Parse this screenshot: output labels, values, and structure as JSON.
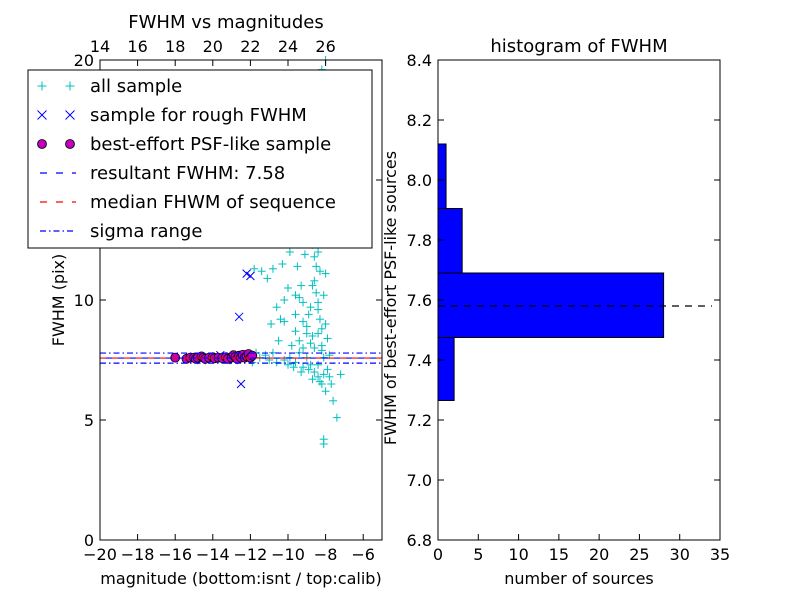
{
  "chart_data": [
    {
      "type": "scatter",
      "title": "FWHM vs magnitudes",
      "xlabel": "magnitude (bottom:isnt / top:calib)",
      "ylabel": "FWHM (pix)",
      "xlim": [
        -20,
        -5
      ],
      "ylim": [
        0,
        20
      ],
      "x_ticks": [
        -20,
        -18,
        -16,
        -14,
        -12,
        -10,
        -8,
        -6
      ],
      "x_tick_labels": [
        "−20",
        "−18",
        "−16",
        "−14",
        "−12",
        "−10",
        "−8",
        "−6"
      ],
      "y_ticks": [
        0,
        5,
        10,
        15,
        20
      ],
      "y_tick_labels": [
        "0",
        "5",
        "10",
        "15",
        "20"
      ],
      "top_axis_ticks": [
        14,
        16,
        18,
        20,
        22,
        24,
        26
      ],
      "top_axis_offset": 34.0,
      "grid": false,
      "legend": {
        "placement": "top-left",
        "entries": [
          {
            "label": "all sample",
            "marker": "+",
            "color": "#00bfbf"
          },
          {
            "label": "sample for rough FWHM",
            "marker": "x",
            "color": "#0000ff"
          },
          {
            "label": "best-effort PSF-like sample",
            "marker": "o",
            "color": "#bf00bf"
          },
          {
            "label": "resultant FWHM: 7.58",
            "marker": "dashed",
            "color": "#0000ff"
          },
          {
            "label": "median FHWM of sequence",
            "marker": "dashed",
            "color": "#ff0000"
          },
          {
            "label": "sigma range",
            "marker": "dashdot",
            "color": "#0000ff"
          }
        ]
      },
      "lines": {
        "resultant_fwhm": 7.58,
        "median_fwhm": 7.58,
        "sigma_range": [
          7.37,
          7.79
        ]
      },
      "series": [
        {
          "name": "all sample",
          "color": "#00bfbf",
          "marker": "+",
          "points": [
            [
              -10.2,
              7.5
            ],
            [
              -9.9,
              7.6
            ],
            [
              -9.6,
              7.4
            ],
            [
              -9.4,
              7.8
            ],
            [
              -9.2,
              7.2
            ],
            [
              -9.0,
              7.6
            ],
            [
              -8.8,
              7.3
            ],
            [
              -8.6,
              7.0
            ],
            [
              -8.4,
              6.8
            ],
            [
              -8.2,
              6.5
            ],
            [
              -8.0,
              6.2
            ],
            [
              -7.8,
              6.8
            ],
            [
              -7.6,
              5.8
            ],
            [
              -7.4,
              5.1
            ],
            [
              -7.2,
              6.9
            ],
            [
              -8.1,
              4.2
            ],
            [
              -8.1,
              4.0
            ],
            [
              -11.5,
              7.6
            ],
            [
              -11.2,
              7.7
            ],
            [
              -11.0,
              7.5
            ],
            [
              -10.8,
              7.8
            ],
            [
              -10.6,
              7.4
            ],
            [
              -10.5,
              8.3
            ],
            [
              -10.4,
              9.2
            ],
            [
              -10.2,
              10.0
            ],
            [
              -10.0,
              10.5
            ],
            [
              -10.6,
              9.7
            ],
            [
              -10.9,
              9.0
            ],
            [
              -11.1,
              10.9
            ],
            [
              -10.8,
              11.3
            ],
            [
              -10.5,
              12.5
            ],
            [
              -10.3,
              11.5
            ],
            [
              -10.1,
              12.9
            ],
            [
              -9.9,
              12.0
            ],
            [
              -9.7,
              13.4
            ],
            [
              -9.5,
              11.4
            ],
            [
              -9.3,
              10.6
            ],
            [
              -9.1,
              11.9
            ],
            [
              -8.9,
              13.5
            ],
            [
              -8.7,
              12.3
            ],
            [
              -8.5,
              14.6
            ],
            [
              -8.3,
              11.2
            ],
            [
              -8.1,
              10.2
            ],
            [
              -8.0,
              9.0
            ],
            [
              -7.9,
              8.4
            ],
            [
              -7.8,
              7.7
            ],
            [
              -9.6,
              9.4
            ],
            [
              -9.4,
              10.1
            ],
            [
              -9.2,
              9.1
            ],
            [
              -9.0,
              8.6
            ],
            [
              -8.8,
              9.7
            ],
            [
              -8.6,
              10.8
            ],
            [
              -8.4,
              9.9
            ],
            [
              -8.2,
              8.8
            ],
            [
              -8.0,
              11.1
            ],
            [
              -9.8,
              8.1
            ],
            [
              -9.6,
              8.7
            ],
            [
              -9.4,
              8.3
            ],
            [
              -9.2,
              8.0
            ],
            [
              -9.0,
              8.9
            ],
            [
              -8.8,
              8.2
            ],
            [
              -8.6,
              8.0
            ],
            [
              -8.4,
              8.6
            ],
            [
              -8.2,
              7.9
            ],
            [
              -8.6,
              13.0
            ],
            [
              -8.5,
              13.8
            ],
            [
              -8.4,
              14.2
            ],
            [
              -8.3,
              12.8
            ],
            [
              -8.4,
              12.0
            ],
            [
              -8.5,
              11.4
            ],
            [
              -8.6,
              11.8
            ],
            [
              -8.7,
              10.6
            ],
            [
              -8.5,
              10.3
            ],
            [
              -8.4,
              9.6
            ],
            [
              -8.3,
              9.2
            ],
            [
              -8.2,
              8.1
            ],
            [
              -8.1,
              7.6
            ],
            [
              -8.4,
              15.0
            ],
            [
              -8.4,
              16.2
            ],
            [
              -8.3,
              17.5
            ],
            [
              -8.3,
              18.5
            ],
            [
              -8.2,
              19.6
            ],
            [
              -8.0,
              20.0
            ],
            [
              -9.2,
              12.6
            ],
            [
              -9.0,
              14.3
            ],
            [
              -8.8,
              13.1
            ],
            [
              -9.4,
              15.2
            ],
            [
              -9.8,
              14.0
            ],
            [
              -10.0,
              13.6
            ],
            [
              -10.4,
              14.8
            ],
            [
              -10.8,
              13.2
            ],
            [
              -11.4,
              11.2
            ],
            [
              -11.8,
              11.3
            ],
            [
              -10.2,
              9.1
            ],
            [
              -9.6,
              10.2
            ],
            [
              -9.2,
              9.9
            ],
            [
              -8.9,
              9.4
            ],
            [
              -8.7,
              8.5
            ],
            [
              -8.9,
              7.1
            ],
            [
              -8.7,
              6.7
            ],
            [
              -8.4,
              7.3
            ],
            [
              -8.3,
              6.6
            ],
            [
              -8.1,
              6.9
            ],
            [
              -7.9,
              7.1
            ],
            [
              -7.7,
              6.5
            ],
            [
              -9.3,
              7.0
            ],
            [
              -9.7,
              7.2
            ],
            [
              -10.0,
              7.3
            ],
            [
              -12.3,
              7.7
            ],
            [
              -12.0,
              7.5
            ],
            [
              -11.7,
              7.8
            ],
            [
              -11.9,
              7.4
            ]
          ]
        },
        {
          "name": "sample for rough FWHM",
          "color": "#0000ff",
          "marker": "x",
          "points": [
            [
              -12.5,
              6.5
            ],
            [
              -12.6,
              9.3
            ],
            [
              -12.2,
              11.1
            ],
            [
              -12.0,
              11.0
            ],
            [
              -14.0,
              7.6
            ],
            [
              -13.6,
              7.7
            ],
            [
              -13.2,
              7.6
            ],
            [
              -12.9,
              7.5
            ],
            [
              -12.4,
              7.6
            ],
            [
              -12.1,
              7.7
            ],
            [
              -15.2,
              7.6
            ],
            [
              -14.6,
              7.5
            ]
          ]
        },
        {
          "name": "best-effort PSF-like sample",
          "color": "#bf00bf",
          "marker": "o",
          "points": [
            [
              -16.0,
              7.6
            ],
            [
              -15.4,
              7.55
            ],
            [
              -15.2,
              7.6
            ],
            [
              -15.0,
              7.6
            ],
            [
              -14.9,
              7.55
            ],
            [
              -14.8,
              7.6
            ],
            [
              -14.6,
              7.65
            ],
            [
              -14.5,
              7.6
            ],
            [
              -14.4,
              7.55
            ],
            [
              -14.2,
              7.6
            ],
            [
              -14.0,
              7.62
            ],
            [
              -13.9,
              7.57
            ],
            [
              -13.7,
              7.6
            ],
            [
              -13.5,
              7.58
            ],
            [
              -13.3,
              7.62
            ],
            [
              -13.2,
              7.55
            ],
            [
              -13.0,
              7.6
            ],
            [
              -12.9,
              7.7
            ],
            [
              -12.8,
              7.62
            ],
            [
              -12.7,
              7.55
            ],
            [
              -12.6,
              7.68
            ],
            [
              -12.5,
              7.6
            ],
            [
              -12.4,
              7.72
            ],
            [
              -12.3,
              7.6
            ],
            [
              -12.2,
              7.65
            ],
            [
              -12.1,
              7.75
            ],
            [
              -12.0,
              7.6
            ],
            [
              -11.9,
              7.68
            ]
          ]
        }
      ]
    },
    {
      "type": "bar",
      "orientation": "horizontal",
      "title": "histogram of FWHM",
      "xlabel": "number of sources",
      "ylabel": "FWHM of best-effort PSF-like sources",
      "xlim": [
        0,
        35
      ],
      "ylim": [
        6.8,
        8.4
      ],
      "x_ticks": [
        0,
        5,
        10,
        15,
        20,
        25,
        30,
        35
      ],
      "x_tick_labels": [
        "0",
        "5",
        "10",
        "15",
        "20",
        "25",
        "30",
        "35"
      ],
      "y_ticks": [
        6.8,
        7.0,
        7.2,
        7.4,
        7.6,
        7.8,
        8.0,
        8.2,
        8.4
      ],
      "y_tick_labels": [
        "6.8",
        "7.0",
        "7.2",
        "7.4",
        "7.6",
        "7.8",
        "8.0",
        "8.2",
        "8.4"
      ],
      "grid": false,
      "bar_color": "#0000ff",
      "bins": [
        {
          "low": 7.265,
          "high": 7.475,
          "count": 2
        },
        {
          "low": 7.475,
          "high": 7.69,
          "count": 28
        },
        {
          "low": 7.69,
          "high": 7.905,
          "count": 3
        },
        {
          "low": 7.905,
          "high": 8.12,
          "count": 1
        }
      ],
      "reference_line": {
        "value": 7.58,
        "style": "dashed",
        "color": "#000000"
      }
    }
  ]
}
